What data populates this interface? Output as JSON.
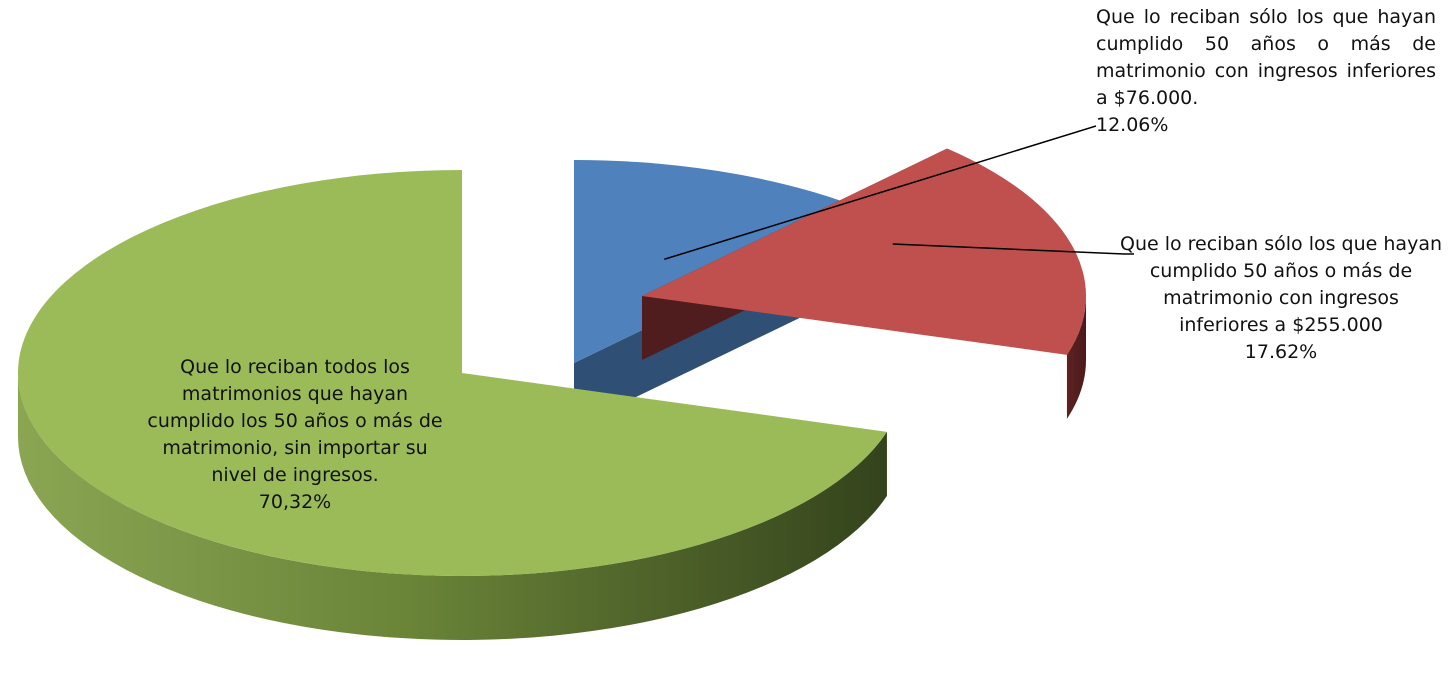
{
  "chart_data": {
    "type": "pie",
    "style": "3d-exploded",
    "slices": [
      {
        "label": "Que lo reciban sólo los que hayan cumplido 50 años o más de matrimonio con ingresos inferiores a $76.000.",
        "value_label": "12.06%",
        "value": 12.06,
        "color": "#4F81BD"
      },
      {
        "label": "Que lo reciban sólo los que hayan cumplido 50 años o más de matrimonio con ingresos inferiores a $255.000",
        "value_label": "17.62%",
        "value": 17.62,
        "color": "#C0504D"
      },
      {
        "label": "Que lo reciban todos los matrimonios que hayan cumplido los 50 años o más de matrimonio, sin importar su nivel de ingresos.",
        "value_label": "70,32%",
        "value": 70.32,
        "color": "#9BBB59"
      }
    ]
  }
}
